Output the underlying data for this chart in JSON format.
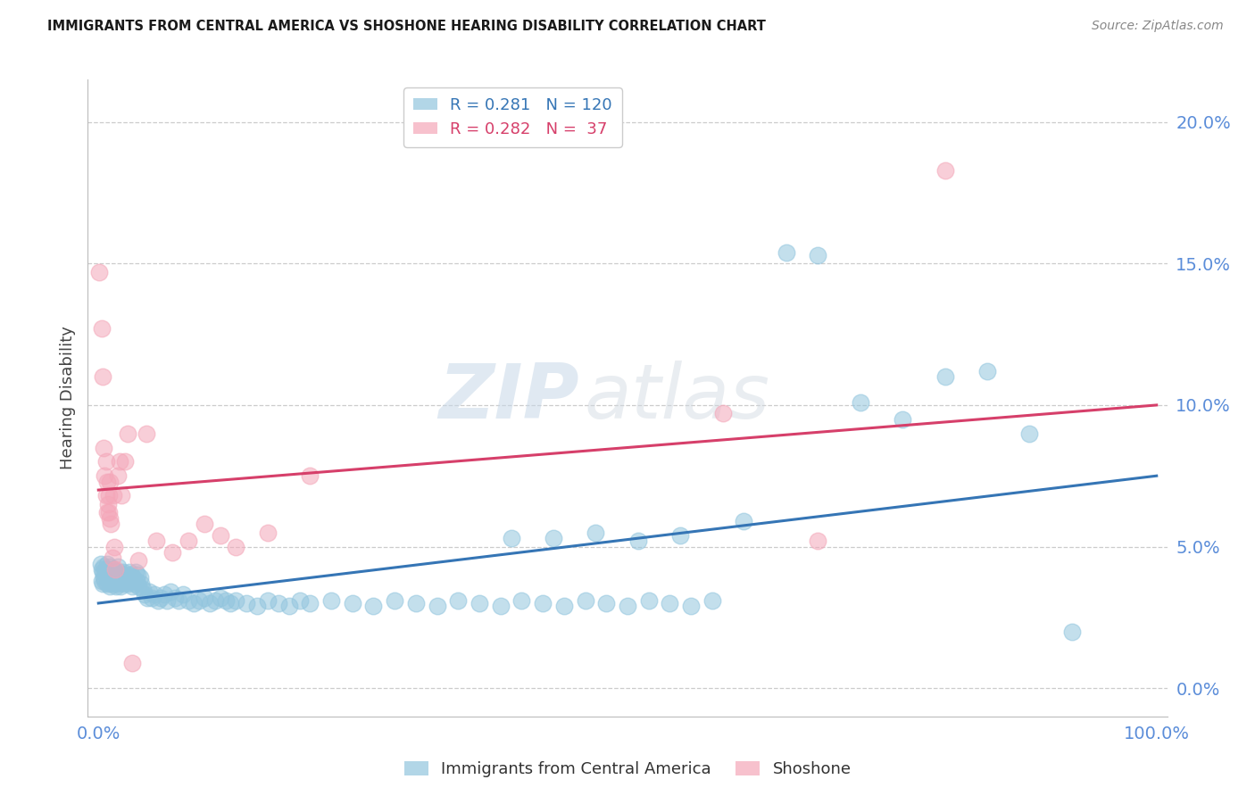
{
  "title": "IMMIGRANTS FROM CENTRAL AMERICA VS SHOSHONE HEARING DISABILITY CORRELATION CHART",
  "source": "Source: ZipAtlas.com",
  "ylabel_label": "Hearing Disability",
  "blue_scatter_x": [
    0.002,
    0.003,
    0.003,
    0.004,
    0.004,
    0.005,
    0.005,
    0.006,
    0.006,
    0.007,
    0.007,
    0.008,
    0.008,
    0.009,
    0.009,
    0.01,
    0.01,
    0.011,
    0.011,
    0.012,
    0.012,
    0.013,
    0.013,
    0.014,
    0.014,
    0.015,
    0.015,
    0.016,
    0.016,
    0.017,
    0.017,
    0.018,
    0.018,
    0.019,
    0.019,
    0.02,
    0.021,
    0.022,
    0.023,
    0.024,
    0.025,
    0.026,
    0.027,
    0.028,
    0.029,
    0.03,
    0.031,
    0.032,
    0.033,
    0.034,
    0.035,
    0.036,
    0.037,
    0.038,
    0.039,
    0.04,
    0.042,
    0.044,
    0.046,
    0.048,
    0.05,
    0.053,
    0.056,
    0.059,
    0.062,
    0.065,
    0.068,
    0.072,
    0.076,
    0.08,
    0.085,
    0.09,
    0.095,
    0.1,
    0.105,
    0.11,
    0.115,
    0.12,
    0.125,
    0.13,
    0.14,
    0.15,
    0.16,
    0.17,
    0.18,
    0.19,
    0.2,
    0.22,
    0.24,
    0.26,
    0.28,
    0.3,
    0.32,
    0.34,
    0.36,
    0.38,
    0.4,
    0.42,
    0.44,
    0.46,
    0.48,
    0.5,
    0.52,
    0.54,
    0.56,
    0.58,
    0.39,
    0.43,
    0.47,
    0.51,
    0.55,
    0.61,
    0.65,
    0.68,
    0.72,
    0.76,
    0.8,
    0.84,
    0.88,
    0.92
  ],
  "blue_scatter_y": [
    0.044,
    0.042,
    0.038,
    0.041,
    0.037,
    0.043,
    0.039,
    0.041,
    0.038,
    0.042,
    0.04,
    0.037,
    0.044,
    0.039,
    0.041,
    0.038,
    0.04,
    0.036,
    0.043,
    0.039,
    0.037,
    0.041,
    0.038,
    0.04,
    0.042,
    0.037,
    0.039,
    0.041,
    0.038,
    0.036,
    0.04,
    0.043,
    0.039,
    0.037,
    0.041,
    0.038,
    0.036,
    0.039,
    0.041,
    0.037,
    0.038,
    0.04,
    0.039,
    0.037,
    0.041,
    0.038,
    0.04,
    0.036,
    0.039,
    0.037,
    0.041,
    0.038,
    0.04,
    0.036,
    0.039,
    0.037,
    0.035,
    0.033,
    0.032,
    0.034,
    0.032,
    0.033,
    0.031,
    0.032,
    0.033,
    0.031,
    0.034,
    0.032,
    0.031,
    0.033,
    0.031,
    0.03,
    0.031,
    0.032,
    0.03,
    0.031,
    0.032,
    0.031,
    0.03,
    0.031,
    0.03,
    0.029,
    0.031,
    0.03,
    0.029,
    0.031,
    0.03,
    0.031,
    0.03,
    0.029,
    0.031,
    0.03,
    0.029,
    0.031,
    0.03,
    0.029,
    0.031,
    0.03,
    0.029,
    0.031,
    0.03,
    0.029,
    0.031,
    0.03,
    0.029,
    0.031,
    0.053,
    0.053,
    0.055,
    0.052,
    0.054,
    0.059,
    0.154,
    0.153,
    0.101,
    0.095,
    0.11,
    0.112,
    0.09,
    0.02
  ],
  "pink_scatter_x": [
    0.001,
    0.003,
    0.004,
    0.005,
    0.006,
    0.007,
    0.007,
    0.008,
    0.008,
    0.009,
    0.01,
    0.01,
    0.011,
    0.011,
    0.012,
    0.013,
    0.014,
    0.015,
    0.016,
    0.018,
    0.02,
    0.022,
    0.025,
    0.028,
    0.032,
    0.038,
    0.045,
    0.055,
    0.07,
    0.085,
    0.1,
    0.115,
    0.13,
    0.16,
    0.2,
    0.59,
    0.68,
    0.8
  ],
  "pink_scatter_y": [
    0.147,
    0.127,
    0.11,
    0.085,
    0.075,
    0.068,
    0.08,
    0.062,
    0.073,
    0.065,
    0.068,
    0.062,
    0.073,
    0.06,
    0.058,
    0.046,
    0.068,
    0.05,
    0.042,
    0.075,
    0.08,
    0.068,
    0.08,
    0.09,
    0.009,
    0.045,
    0.09,
    0.052,
    0.048,
    0.052,
    0.058,
    0.054,
    0.05,
    0.055,
    0.075,
    0.097,
    0.052,
    0.183
  ],
  "blue_line_x": [
    0.0,
    1.0
  ],
  "blue_line_y": [
    0.03,
    0.075
  ],
  "pink_line_x": [
    0.0,
    1.0
  ],
  "pink_line_y": [
    0.07,
    0.1
  ],
  "xlim": [
    -0.01,
    1.01
  ],
  "ylim": [
    -0.01,
    0.215
  ],
  "yticks": [
    0.0,
    0.05,
    0.1,
    0.15,
    0.2
  ],
  "ytick_labels": [
    "0.0%",
    "5.0%",
    "10.0%",
    "15.0%",
    "20.0%"
  ],
  "xticks": [
    0.0,
    1.0
  ],
  "xtick_labels": [
    "0.0%",
    "100.0%"
  ],
  "blue_color": "#92c5de",
  "pink_color": "#f4a7b9",
  "blue_line_color": "#3575b5",
  "pink_line_color": "#d63f6a",
  "watermark_zip": "ZIP",
  "watermark_atlas": "atlas",
  "background_color": "#ffffff",
  "grid_color": "#cccccc",
  "tick_color": "#5b8dd9",
  "title_color": "#1a1a1a",
  "source_color": "#888888",
  "ylabel_color": "#444444"
}
